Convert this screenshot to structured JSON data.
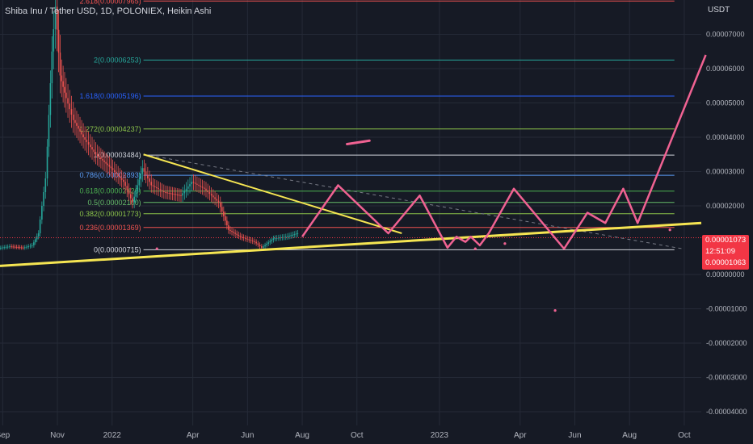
{
  "header": {
    "symbol": "Shiba Inu / Tether USD, 1D, POLONIEX, Heikin Ashi",
    "currency": "USDT"
  },
  "price_tag": {
    "last_price": "0.00001073",
    "countdown": "12:51:09",
    "secondary_price": "0.00001063"
  },
  "colors": {
    "background": "#161a25",
    "grid": "#252a37",
    "axis_text": "#b2b5be",
    "candle_up": "#26a69a",
    "candle_down": "#ef5350",
    "trendline": "#f5e552",
    "projection": "#f06292",
    "fib_line_white": "#d1d4dc",
    "last_price": "#f23645"
  },
  "chart_data": {
    "type": "candlestick",
    "title": "Shiba Inu / Tether USD, 1D, POLONIEX, Heikin Ashi",
    "ylabel": "USDT",
    "y_range": [
      -4.4e-06,
      8e-06
    ],
    "x_range": [
      "2021-08-29",
      "2023-10-20"
    ],
    "x_ticks": [
      {
        "date": "2021-09-01",
        "label": "Sep"
      },
      {
        "date": "2021-11-01",
        "label": "Nov"
      },
      {
        "date": "2022-01-01",
        "label": "2022"
      },
      {
        "date": "2022-04-01",
        "label": "Apr"
      },
      {
        "date": "2022-06-01",
        "label": "Jun"
      },
      {
        "date": "2022-08-01",
        "label": "Aug"
      },
      {
        "date": "2022-10-01",
        "label": "Oct"
      },
      {
        "date": "2023-01-01",
        "label": "2023"
      },
      {
        "date": "2023-04-01",
        "label": "Apr"
      },
      {
        "date": "2023-06-01",
        "label": "Jun"
      },
      {
        "date": "2023-08-01",
        "label": "Aug"
      },
      {
        "date": "2023-10-01",
        "label": "Oct"
      }
    ],
    "y_ticks": [
      {
        "value": 7e-06,
        "label": "0.00007000"
      },
      {
        "value": 6e-06,
        "label": "0.00006000"
      },
      {
        "value": 5e-06,
        "label": "0.00005000"
      },
      {
        "value": 4e-06,
        "label": "0.00004000"
      },
      {
        "value": 3e-06,
        "label": "0.00003000"
      },
      {
        "value": 2e-06,
        "label": "0.00002000"
      },
      {
        "value": 0.0,
        "label": "0.00000000"
      },
      {
        "value": -1e-06,
        "label": "-0.00001000"
      },
      {
        "value": -2e-06,
        "label": "-0.00002000"
      },
      {
        "value": -3e-06,
        "label": "-0.00003000"
      },
      {
        "value": -4e-06,
        "label": "-0.00004000"
      }
    ],
    "fib_levels": [
      {
        "label": "2.618(0.00007965)",
        "value": 7.97e-06,
        "color": "#ef5350"
      },
      {
        "label": "2(0.00006253)",
        "value": 6.25e-06,
        "color": "#26a69a"
      },
      {
        "label": "1.618(0.00005196)",
        "value": 5.2e-06,
        "color": "#2962ff"
      },
      {
        "label": "1.272(0.00004237)",
        "value": 4.24e-06,
        "color": "#8bc34a"
      },
      {
        "label": "1(0.00003484)",
        "value": 3.48e-06,
        "color": "#d1d4dc"
      },
      {
        "label": "0.786(0.00002893)",
        "value": 2.89e-06,
        "color": "#5b9cf6"
      },
      {
        "label": "0.618(0.00002426)",
        "value": 2.43e-06,
        "color": "#4caf50"
      },
      {
        "label": "0.5(0.00002100)",
        "value": 2.1e-06,
        "color": "#66bb6a"
      },
      {
        "label": "0.382(0.00001773)",
        "value": 1.77e-06,
        "color": "#8bc34a"
      },
      {
        "label": "0.236(0.00001369)",
        "value": 1.37e-06,
        "color": "#ef5350"
      },
      {
        "label": "0(0.00000715)",
        "value": 7.2e-07,
        "color": "#d1d4dc"
      }
    ],
    "price_path": [
      [
        "2021-08-29",
        7.7e-07
      ],
      [
        "2021-09-10",
        8.2e-07
      ],
      [
        "2021-09-25",
        7.8e-07
      ],
      [
        "2021-10-05",
        8.5e-07
      ],
      [
        "2021-10-12",
        1.2e-06
      ],
      [
        "2021-10-20",
        2.8e-06
      ],
      [
        "2021-10-27",
        6.5e-06
      ],
      [
        "2021-10-31",
        7.8e-06
      ],
      [
        "2021-11-05",
        5.8e-06
      ],
      [
        "2021-11-10",
        5.3e-06
      ],
      [
        "2021-11-20",
        4.5e-06
      ],
      [
        "2021-12-01",
        4e-06
      ],
      [
        "2021-12-15",
        3.5e-06
      ],
      [
        "2022-01-01",
        3.1e-06
      ],
      [
        "2022-01-15",
        2.7e-06
      ],
      [
        "2022-01-25",
        2.1e-06
      ],
      [
        "2022-02-05",
        3.1e-06
      ],
      [
        "2022-02-15",
        2.6e-06
      ],
      [
        "2022-03-01",
        2.4e-06
      ],
      [
        "2022-03-20",
        2.3e-06
      ],
      [
        "2022-04-01",
        2.7e-06
      ],
      [
        "2022-04-15",
        2.5e-06
      ],
      [
        "2022-05-01",
        2.1e-06
      ],
      [
        "2022-05-12",
        1.3e-06
      ],
      [
        "2022-05-25",
        1.1e-06
      ],
      [
        "2022-06-10",
        9.5e-07
      ],
      [
        "2022-06-18",
        7.8e-07
      ],
      [
        "2022-07-01",
        1.05e-06
      ],
      [
        "2022-07-15",
        1.1e-06
      ],
      [
        "2022-07-28",
        1.2e-06
      ]
    ],
    "descending_trendline": [
      [
        "2022-02-05",
        3.5e-06
      ],
      [
        "2022-11-20",
        1.2e-06
      ]
    ],
    "dashed_trendline": [
      [
        "2022-02-05",
        3.5e-06
      ],
      [
        "2023-10-01",
        7.4e-07
      ]
    ],
    "ascending_support": [
      [
        "2021-08-29",
        2.5e-07
      ],
      [
        "2023-10-20",
        1.5e-06
      ]
    ],
    "projection_path": [
      [
        "2022-08-01",
        1.1e-06
      ],
      [
        "2022-09-10",
        2.6e-06
      ],
      [
        "2022-11-05",
        1.2e-06
      ],
      [
        "2022-12-10",
        2.3e-06
      ],
      [
        "2023-01-10",
        7.8e-07
      ],
      [
        "2023-01-20",
        1.1e-06
      ],
      [
        "2023-01-30",
        9.5e-07
      ],
      [
        "2023-02-05",
        1.1e-06
      ],
      [
        "2023-02-15",
        8.5e-07
      ],
      [
        "2023-02-25",
        1.2e-06
      ],
      [
        "2023-03-25",
        2.5e-06
      ],
      [
        "2023-05-20",
        7.5e-07
      ],
      [
        "2023-06-15",
        1.8e-06
      ],
      [
        "2023-07-05",
        1.5e-06
      ],
      [
        "2023-07-25",
        2.5e-06
      ],
      [
        "2023-08-10",
        1.5e-06
      ],
      [
        "2023-10-25",
        6.4e-06
      ]
    ],
    "marker_dash": [
      [
        "2022-09-20",
        3.8e-06
      ],
      [
        "2022-10-15",
        3.9e-06
      ]
    ],
    "dots": [
      [
        "2022-02-20",
        7.5e-07
      ],
      [
        "2023-02-10",
        7.5e-07
      ],
      [
        "2023-03-15",
        9e-07
      ],
      [
        "2023-05-10",
        -1.05e-06
      ],
      [
        "2023-09-15",
        1.3e-06
      ]
    ],
    "last_price": 1.073e-05,
    "last_price_line": 1.07e-06,
    "grid": true,
    "legend": "none"
  }
}
